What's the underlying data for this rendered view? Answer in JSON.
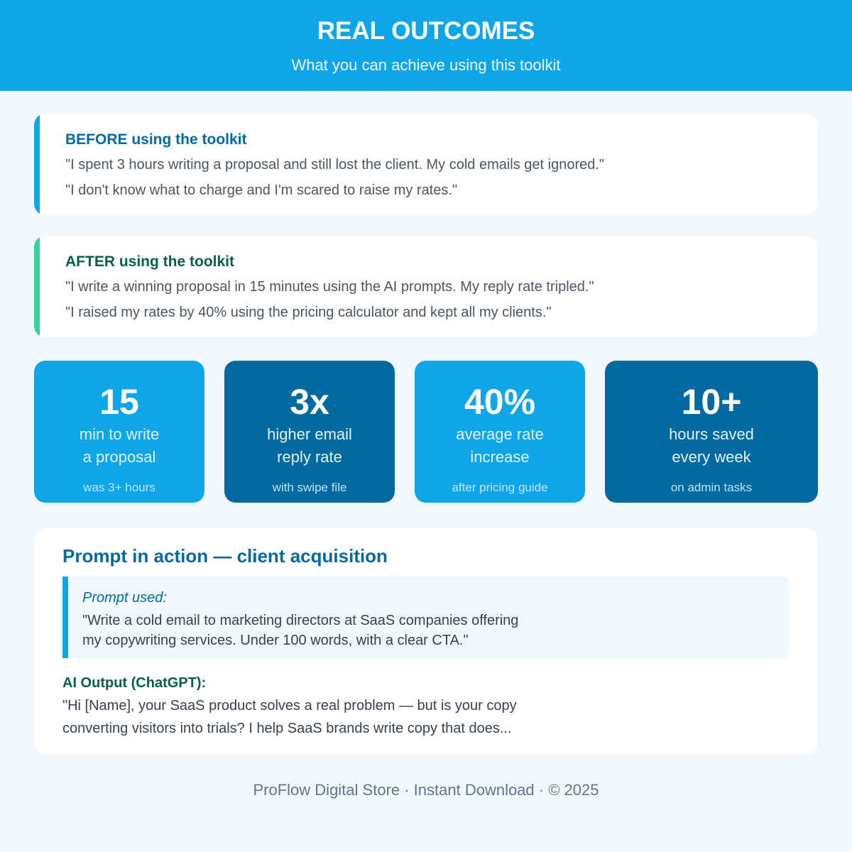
{
  "header": {
    "title": "REAL OUTCOMES",
    "subtitle": "What you can achieve using this toolkit"
  },
  "before": {
    "heading": "BEFORE using the toolkit",
    "quotes": [
      "\"I spent 3 hours writing a proposal and still lost the client. My cold emails get ignored.\"",
      "\"I don't know what to charge and I'm scared to raise my rates.\""
    ]
  },
  "after": {
    "heading": "AFTER using the toolkit",
    "quotes": [
      "\"I write a winning proposal in 15 minutes using the AI prompts. My reply rate tripled.\"",
      "\"I raised my rates by 40% using the pricing calculator and kept all my clients.\""
    ]
  },
  "stats": [
    {
      "value": "15",
      "label": [
        "min to write",
        "a proposal"
      ],
      "note": "was 3+ hours"
    },
    {
      "value": "3x",
      "label": [
        "higher email",
        "reply rate"
      ],
      "note": "with swipe file"
    },
    {
      "value": "40%",
      "label": [
        "average rate",
        "increase"
      ],
      "note": "after pricing guide"
    },
    {
      "value": "10+",
      "label": [
        "hours saved",
        "every week"
      ],
      "note": "on admin tasks"
    }
  ],
  "prompt": {
    "heading": "Prompt in action — client acquisition",
    "prompt_label": "Prompt used:",
    "prompt_lines": [
      "\"Write a cold email to marketing directors at SaaS companies offering",
      "my copywriting services. Under 100 words, with a clear CTA.\""
    ],
    "output_label": "AI Output (ChatGPT):",
    "output_lines": [
      "\"Hi [Name], your SaaS product solves a real problem — but is your copy",
      "converting visitors into trials? I help SaaS brands write copy that does..."
    ]
  },
  "footer": "ProFlow Digital Store · Instant Download · © 2025"
}
